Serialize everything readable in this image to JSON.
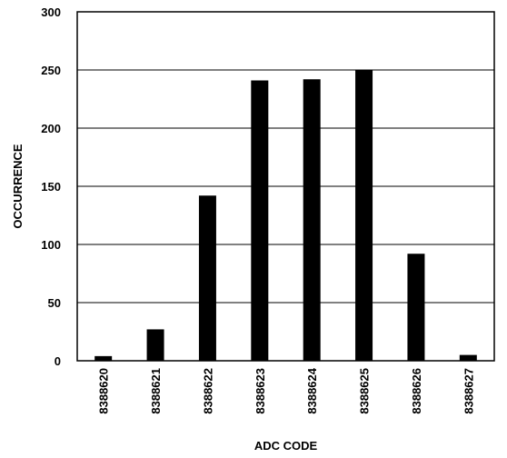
{
  "chart_data": {
    "type": "bar",
    "title": "",
    "xlabel": "ADC CODE",
    "ylabel": "OCCURRENCE",
    "categories": [
      "8388620",
      "8388621",
      "8388622",
      "8388623",
      "8388624",
      "8388625",
      "8388626",
      "8388627"
    ],
    "values": [
      4,
      27,
      142,
      241,
      242,
      250,
      92,
      5
    ],
    "ylim": [
      0,
      300
    ],
    "yticks": [
      "0",
      "50",
      "100",
      "150",
      "200",
      "250",
      "300"
    ],
    "grid": true,
    "legend": "none",
    "bar_color": "#000000"
  }
}
